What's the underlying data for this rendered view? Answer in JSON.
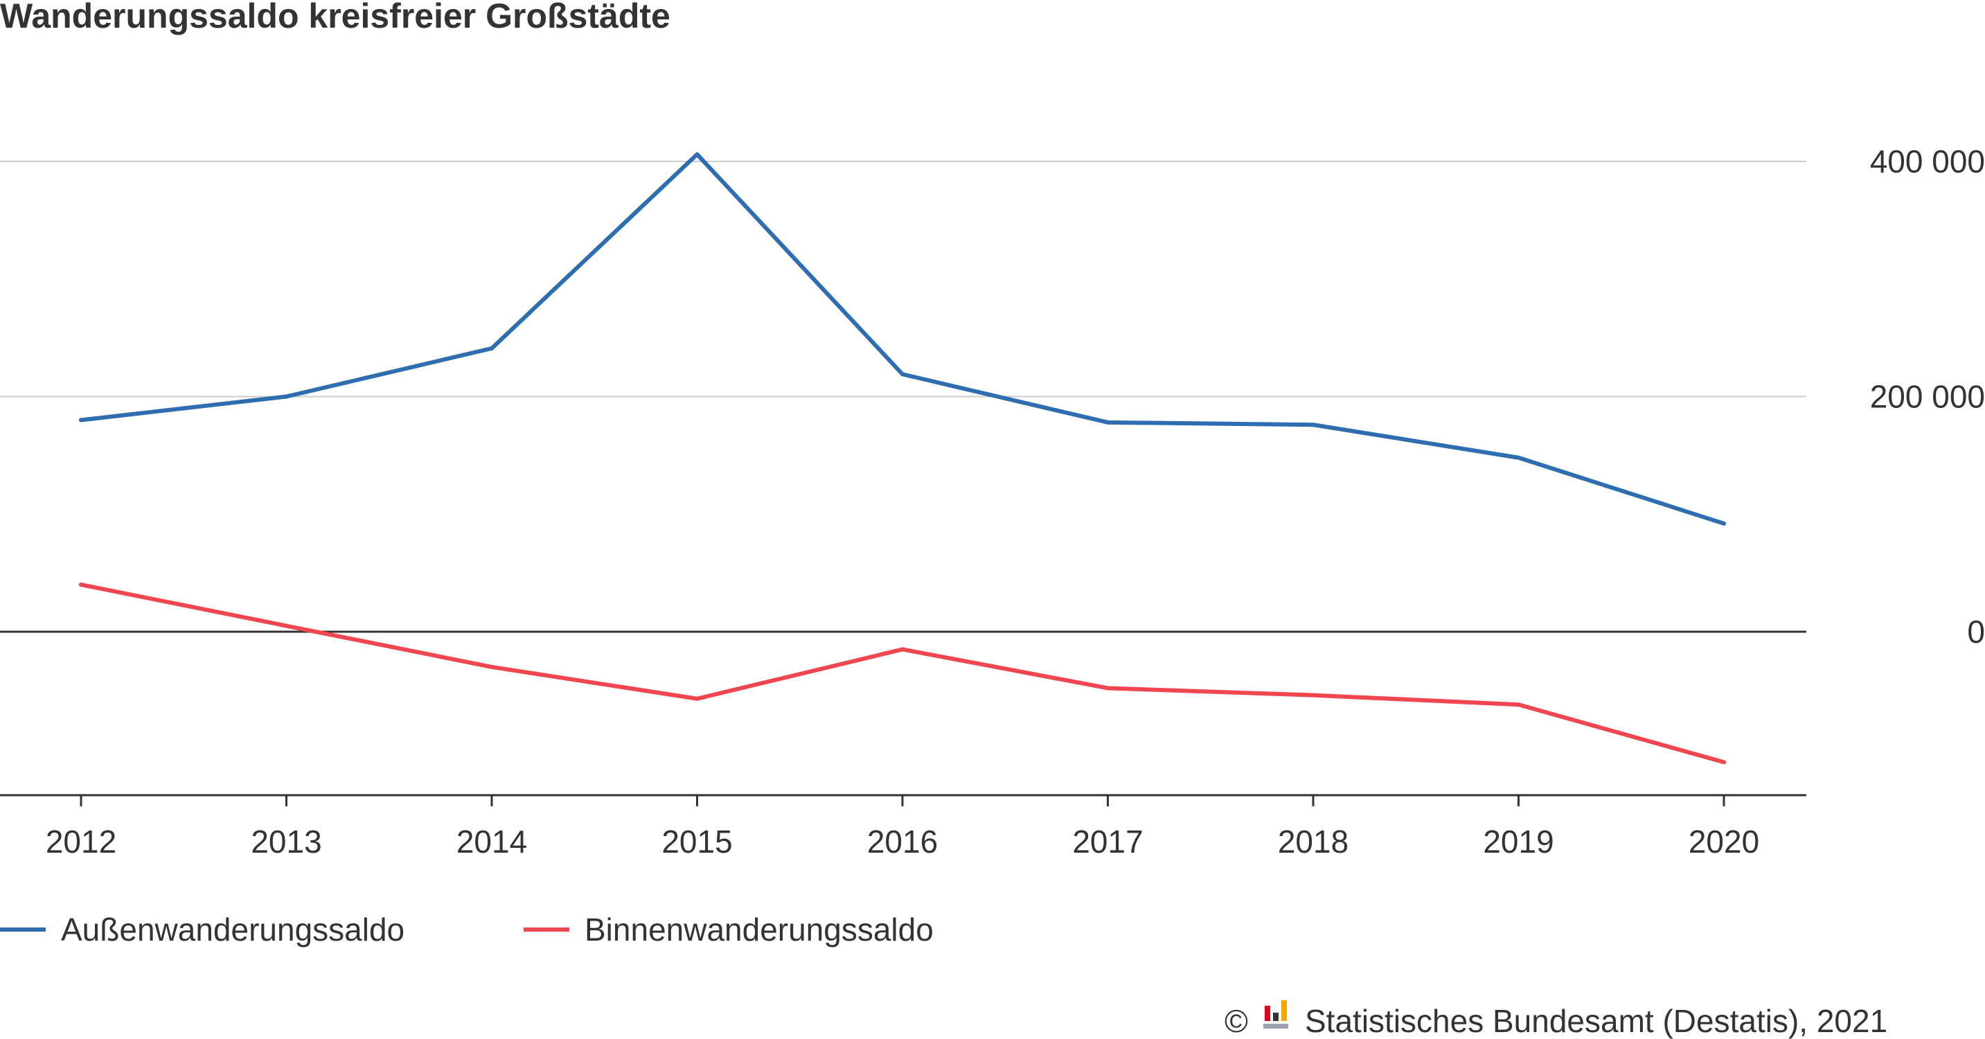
{
  "chart_data": {
    "type": "line",
    "title": "Wanderungssaldo kreisfreier Großstädte",
    "xlabel": "",
    "ylabel": "",
    "categories": [
      "2012",
      "2013",
      "2014",
      "2015",
      "2016",
      "2017",
      "2018",
      "2019",
      "2020"
    ],
    "series": [
      {
        "name": "Außenwanderungssaldo",
        "color": "#2e6eb0",
        "values": [
          180000,
          200000,
          241000,
          406000,
          219000,
          178000,
          176000,
          148000,
          92000
        ]
      },
      {
        "name": "Binnenwanderungssaldo",
        "color": "#f04650",
        "values": [
          40000,
          5000,
          -30000,
          -57000,
          -15000,
          -48000,
          -54000,
          -62000,
          -111000
        ]
      }
    ],
    "y_ticks": [
      {
        "value": 400000,
        "label": "400 000"
      },
      {
        "value": 200000,
        "label": "200 000"
      },
      {
        "value": 0,
        "label": "0"
      }
    ],
    "ylim": [
      -138000,
      400000
    ],
    "y_axis_position": "right",
    "grid": true,
    "legend_position": "bottom-left",
    "zero_line_color": "#333333",
    "grid_color": "#cccccc"
  },
  "source": {
    "copyright": "©",
    "text": "Statistisches Bundesamt (Destatis), 2021",
    "logo_icon": "destatis-logo-icon"
  }
}
